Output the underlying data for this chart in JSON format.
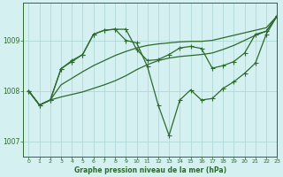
{
  "title": "Graphe pression niveau de la mer (hPa)",
  "background_color": "#d4f0f0",
  "grid_color": "#b0d8d8",
  "line_color": "#2d6a2d",
  "xlim": [
    -0.5,
    23
  ],
  "ylim": [
    1006.7,
    1009.75
  ],
  "yticks": [
    1007,
    1008,
    1009
  ],
  "xticks": [
    0,
    1,
    2,
    3,
    4,
    5,
    6,
    7,
    8,
    9,
    10,
    11,
    12,
    13,
    14,
    15,
    16,
    17,
    18,
    19,
    20,
    21,
    22,
    23
  ],
  "line_zigzag": [
    [
      0,
      1008.0
    ],
    [
      1,
      1007.72
    ],
    [
      2,
      1007.82
    ],
    [
      3,
      1008.44
    ],
    [
      4,
      1008.58
    ],
    [
      5,
      1008.72
    ],
    [
      6,
      1009.12
    ],
    [
      7,
      1009.2
    ],
    [
      8,
      1009.22
    ],
    [
      9,
      1009.0
    ],
    [
      10,
      1008.95
    ],
    [
      11,
      1008.48
    ],
    [
      12,
      1007.72
    ],
    [
      13,
      1007.12
    ],
    [
      14,
      1007.82
    ],
    [
      15,
      1008.02
    ],
    [
      16,
      1007.82
    ],
    [
      17,
      1007.85
    ],
    [
      18,
      1008.05
    ],
    [
      19,
      1008.18
    ],
    [
      20,
      1008.35
    ],
    [
      21,
      1008.55
    ],
    [
      22,
      1009.12
    ],
    [
      23,
      1009.48
    ]
  ],
  "line_smooth1": [
    [
      0,
      1008.0
    ],
    [
      1,
      1007.72
    ],
    [
      2,
      1007.82
    ],
    [
      3,
      1008.12
    ],
    [
      4,
      1008.25
    ],
    [
      5,
      1008.38
    ],
    [
      6,
      1008.5
    ],
    [
      7,
      1008.6
    ],
    [
      8,
      1008.7
    ],
    [
      9,
      1008.78
    ],
    [
      10,
      1008.85
    ],
    [
      11,
      1008.9
    ],
    [
      12,
      1008.93
    ],
    [
      13,
      1008.95
    ],
    [
      14,
      1008.97
    ],
    [
      15,
      1008.98
    ],
    [
      16,
      1008.98
    ],
    [
      17,
      1009.0
    ],
    [
      18,
      1009.05
    ],
    [
      19,
      1009.1
    ],
    [
      20,
      1009.15
    ],
    [
      21,
      1009.2
    ],
    [
      22,
      1009.25
    ],
    [
      23,
      1009.48
    ]
  ],
  "line_smooth2": [
    [
      0,
      1008.0
    ],
    [
      1,
      1007.72
    ],
    [
      2,
      1007.82
    ],
    [
      3,
      1007.88
    ],
    [
      4,
      1007.93
    ],
    [
      5,
      1007.98
    ],
    [
      6,
      1008.05
    ],
    [
      7,
      1008.12
    ],
    [
      8,
      1008.2
    ],
    [
      9,
      1008.3
    ],
    [
      10,
      1008.42
    ],
    [
      11,
      1008.52
    ],
    [
      12,
      1008.6
    ],
    [
      13,
      1008.65
    ],
    [
      14,
      1008.68
    ],
    [
      15,
      1008.7
    ],
    [
      16,
      1008.72
    ],
    [
      17,
      1008.75
    ],
    [
      18,
      1008.82
    ],
    [
      19,
      1008.9
    ],
    [
      20,
      1009.0
    ],
    [
      21,
      1009.1
    ],
    [
      22,
      1009.18
    ],
    [
      23,
      1009.48
    ]
  ],
  "line_marked": [
    [
      0,
      1008.0
    ],
    [
      1,
      1007.72
    ],
    [
      2,
      1007.82
    ],
    [
      3,
      1008.44
    ],
    [
      4,
      1008.6
    ],
    [
      5,
      1008.72
    ],
    [
      6,
      1009.12
    ],
    [
      7,
      1009.2
    ],
    [
      8,
      1009.22
    ],
    [
      9,
      1009.22
    ],
    [
      10,
      1008.82
    ],
    [
      11,
      1008.6
    ],
    [
      12,
      1008.62
    ],
    [
      13,
      1008.72
    ],
    [
      14,
      1008.85
    ],
    [
      15,
      1008.88
    ],
    [
      16,
      1008.84
    ],
    [
      17,
      1008.45
    ],
    [
      18,
      1008.5
    ],
    [
      19,
      1008.58
    ],
    [
      20,
      1008.75
    ],
    [
      21,
      1009.12
    ],
    [
      22,
      1009.18
    ],
    [
      23,
      1009.48
    ]
  ]
}
